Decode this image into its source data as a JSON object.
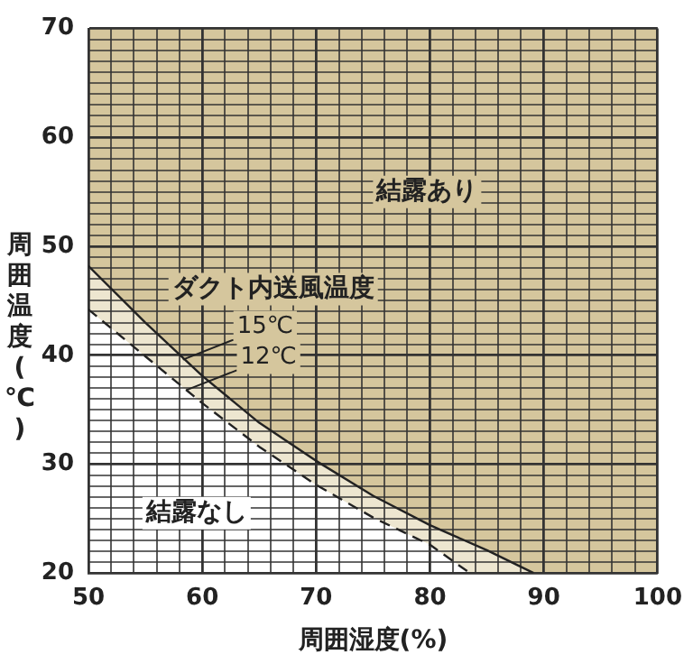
{
  "chart_data": {
    "type": "area",
    "xlabel": "周囲湿度(%)",
    "ylabel": "周囲温度(℃)",
    "legend_title": "ダクト内送風温度",
    "xlim": [
      50,
      100
    ],
    "ylim": [
      20,
      70
    ],
    "xticks": [
      50,
      {
        "value": 52,
        "label": null
      },
      {
        "value": 54,
        "label": null
      },
      {
        "value": 56,
        "label": null
      },
      {
        "value": 58,
        "label": null
      },
      60,
      {
        "value": 62,
        "label": null
      },
      {
        "value": 64,
        "label": null
      },
      {
        "value": 66,
        "label": null
      },
      {
        "value": 68,
        "label": null
      },
      70,
      {
        "value": 72,
        "label": null
      },
      {
        "value": 74,
        "label": null
      },
      {
        "value": 76,
        "label": null
      },
      {
        "value": 78,
        "label": null
      },
      80,
      {
        "value": 82,
        "label": null
      },
      {
        "value": 84,
        "label": null
      },
      {
        "value": 86,
        "label": null
      },
      {
        "value": 88,
        "label": null
      },
      90,
      {
        "value": 92,
        "label": null
      },
      {
        "value": 94,
        "label": null
      },
      {
        "value": 96,
        "label": null
      },
      {
        "value": 98,
        "label": null
      },
      100
    ],
    "yticks": [
      20,
      {
        "value": 21,
        "label": null
      },
      {
        "value": 22,
        "label": null
      },
      {
        "value": 23,
        "label": null
      },
      {
        "value": 24,
        "label": null
      },
      {
        "value": 25,
        "label": null
      },
      {
        "value": 26,
        "label": null
      },
      {
        "value": 27,
        "label": null
      },
      {
        "value": 28,
        "label": null
      },
      {
        "value": 29,
        "label": null
      },
      30,
      {
        "value": 31,
        "label": null
      },
      {
        "value": 32,
        "label": null
      },
      {
        "value": 33,
        "label": null
      },
      {
        "value": 34,
        "label": null
      },
      {
        "value": 35,
        "label": null
      },
      {
        "value": 36,
        "label": null
      },
      {
        "value": 37,
        "label": null
      },
      {
        "value": 38,
        "label": null
      },
      {
        "value": 39,
        "label": null
      },
      40,
      {
        "value": 41,
        "label": null
      },
      {
        "value": 42,
        "label": null
      },
      {
        "value": 43,
        "label": null
      },
      {
        "value": 44,
        "label": null
      },
      {
        "value": 45,
        "label": null
      },
      {
        "value": 46,
        "label": null
      },
      {
        "value": 47,
        "label": null
      },
      {
        "value": 48,
        "label": null
      },
      {
        "value": 49,
        "label": null
      },
      50,
      {
        "value": 51,
        "label": null
      },
      {
        "value": 52,
        "label": null
      },
      {
        "value": 53,
        "label": null
      },
      {
        "value": 54,
        "label": null
      },
      {
        "value": 55,
        "label": null
      },
      {
        "value": 56,
        "label": null
      },
      {
        "value": 57,
        "label": null
      },
      {
        "value": 58,
        "label": null
      },
      {
        "value": 59,
        "label": null
      },
      60,
      {
        "value": 61,
        "label": null
      },
      {
        "value": 62,
        "label": null
      },
      {
        "value": 63,
        "label": null
      },
      {
        "value": 64,
        "label": null
      },
      {
        "value": 65,
        "label": null
      },
      {
        "value": 66,
        "label": null
      },
      {
        "value": 67,
        "label": null
      },
      {
        "value": 68,
        "label": null
      },
      {
        "value": 69,
        "label": null
      },
      70
    ],
    "grid": true,
    "series": [
      {
        "color": "#ede6d0",
        "line_style": "solid",
        "x": [
          50,
          55,
          60,
          65,
          70,
          75,
          80,
          85,
          89.1
        ],
        "values": [
          48.2,
          43.0,
          38.1,
          33.8,
          30.3,
          27.1,
          24.4,
          22.1,
          20
        ]
      },
      {
        "color": "#ffffff",
        "line_style": "dashed",
        "x": [
          50,
          55,
          60,
          65,
          70,
          75,
          80,
          83.5
        ],
        "values": [
          44.2,
          39.9,
          35.6,
          31.6,
          28.1,
          25.1,
          22.6,
          20
        ]
      }
    ],
    "annotations": [
      {
        "text": "15℃",
        "x": 58.3,
        "y": 39.6
      },
      {
        "text": "12℃",
        "x": 58.6,
        "y": 36.8
      },
      "結露あり",
      "結露なし"
    ]
  }
}
